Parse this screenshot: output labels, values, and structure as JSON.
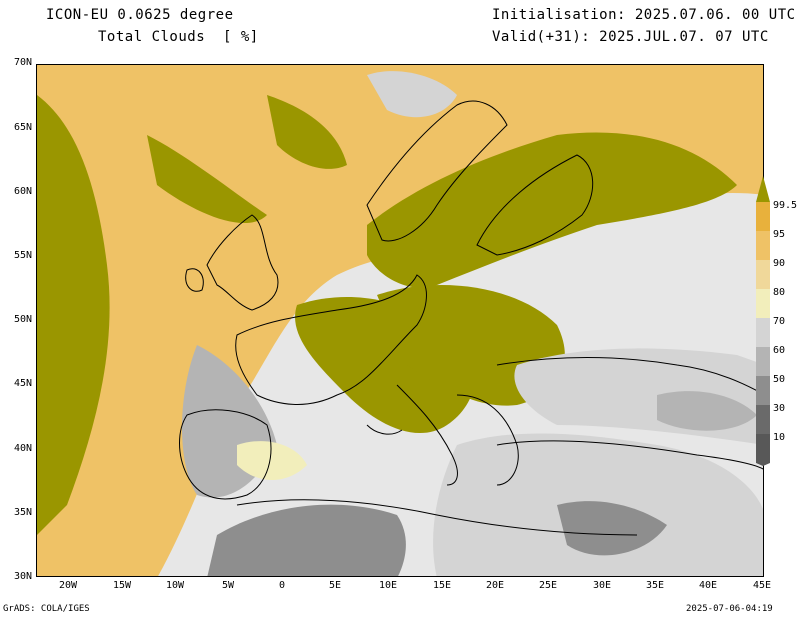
{
  "header": {
    "model": "ICON-EU 0.0625 degree",
    "variable": "Total Clouds  [ %]",
    "init": "Initialisation: 2025.07.06. 00 UTC",
    "valid": "Valid(+31): 2025.JUL.07. 07 UTC"
  },
  "axes": {
    "lat_labels": [
      "70N",
      "65N",
      "60N",
      "55N",
      "50N",
      "45N",
      "40N",
      "35N",
      "30N"
    ],
    "lon_labels": [
      "20W",
      "15W",
      "10W",
      "5W",
      "0",
      "5E",
      "10E",
      "15E",
      "20E",
      "25E",
      "30E",
      "35E",
      "40E",
      "45E"
    ]
  },
  "colorbar": {
    "levels": [
      "99.5",
      "95",
      "90",
      "80",
      "70",
      "60",
      "50",
      "30",
      "10"
    ],
    "colors": [
      "#9a9600",
      "#e8b13c",
      "#efc266",
      "#f0d89a",
      "#f2eebb",
      "#d4d4d4",
      "#b4b4b4",
      "#8e8e8e",
      "#6a6a6a",
      "#585858"
    ]
  },
  "footer": {
    "left": "GrADS: COLA/IGES",
    "right": "2025-07-06-04:19"
  }
}
